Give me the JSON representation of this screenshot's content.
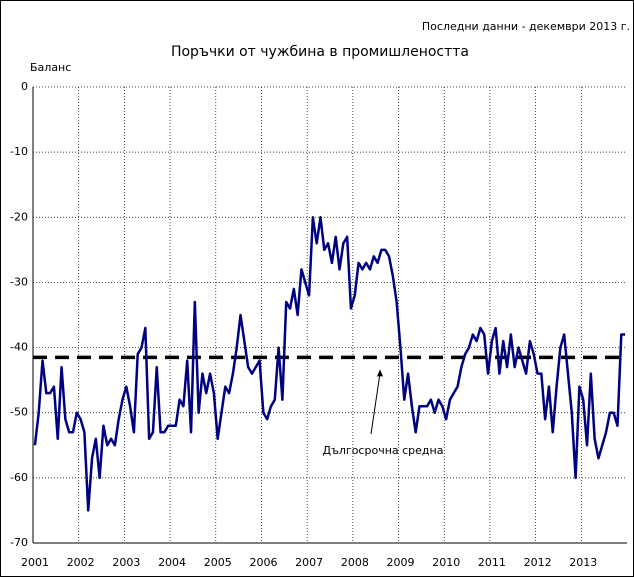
{
  "chart_data": {
    "type": "line",
    "title": "Поръчки от чужбина в промишлеността",
    "note": "Последни данни - декември 2013 г.",
    "ylabel": "Баланс",
    "categories": [
      "2001",
      null,
      null,
      null,
      null,
      null,
      null,
      null,
      null,
      null,
      null,
      null,
      "2002",
      null,
      null,
      null,
      null,
      null,
      null,
      null,
      null,
      null,
      null,
      null,
      "2003",
      null,
      null,
      null,
      null,
      null,
      null,
      null,
      null,
      null,
      null,
      null,
      "2004",
      null,
      null,
      null,
      null,
      null,
      null,
      null,
      null,
      null,
      null,
      null,
      "2005",
      null,
      null,
      null,
      null,
      null,
      null,
      null,
      null,
      null,
      null,
      null,
      "2006",
      null,
      null,
      null,
      null,
      null,
      null,
      null,
      null,
      null,
      null,
      null,
      "2007",
      null,
      null,
      null,
      null,
      null,
      null,
      null,
      null,
      null,
      null,
      null,
      "2008",
      null,
      null,
      null,
      null,
      null,
      null,
      null,
      null,
      null,
      null,
      null,
      "2009",
      null,
      null,
      null,
      null,
      null,
      null,
      null,
      null,
      null,
      null,
      null,
      "2010",
      null,
      null,
      null,
      null,
      null,
      null,
      null,
      null,
      null,
      null,
      null,
      "2011",
      null,
      null,
      null,
      null,
      null,
      null,
      null,
      null,
      null,
      null,
      null,
      "2012",
      null,
      null,
      null,
      null,
      null,
      null,
      null,
      null,
      null,
      null,
      null,
      "2013",
      null,
      null,
      null,
      null,
      null,
      null,
      null,
      null,
      null,
      null,
      null
    ],
    "series": [
      {
        "color": "#000080",
        "values": [
          -55,
          -50,
          -42,
          -47,
          -47,
          -46,
          -54,
          -43,
          -51,
          -53,
          -53,
          -50,
          -51,
          -53,
          -65,
          -57,
          -54,
          -60,
          -52,
          -55,
          -54,
          -55,
          -51,
          -48,
          -46,
          -49,
          -53,
          -41,
          -40,
          -37,
          -54,
          -53,
          -43,
          -53,
          -53,
          -52,
          -52,
          -52,
          -48,
          -49,
          -42,
          -53,
          -33,
          -50,
          -44,
          -47,
          -44,
          -47,
          -54,
          -50,
          -46,
          -47,
          -44,
          -40,
          -35,
          -39,
          -43,
          -44,
          -43,
          -42,
          -50,
          -51,
          -49,
          -48,
          -40,
          -48,
          -33,
          -34,
          -31,
          -35,
          -28,
          -30,
          -32,
          -20,
          -24,
          -20,
          -25,
          -24,
          -27,
          -23,
          -28,
          -24,
          -23,
          -34,
          -32,
          -27,
          -28,
          -27,
          -28,
          -26,
          -27,
          -25,
          -25,
          -26,
          -29,
          -33,
          -40,
          -48,
          -44,
          -49,
          -53,
          -49,
          -49,
          -49,
          -48,
          -50,
          -48,
          -49,
          -51,
          -48,
          -47,
          -46,
          -43,
          -41,
          -40,
          -38,
          -39,
          -37,
          -38,
          -44,
          -39,
          -37,
          -44,
          -39,
          -43,
          -38,
          -43,
          -40,
          -42,
          -44,
          -39,
          -41,
          -44,
          -44,
          -51,
          -46,
          -53,
          -46,
          -40,
          -38,
          -44,
          -50,
          -60,
          -46,
          -48,
          -55,
          -44,
          -54,
          -57,
          -55,
          -53,
          -50,
          -50,
          -52,
          -38,
          -38
        ]
      }
    ],
    "long_term_average": -41.5,
    "average_label": "Дългосрочна средна",
    "ylim": [
      -70,
      0
    ],
    "yticks": [
      0,
      -10,
      -20,
      -30,
      -40,
      -50,
      -60,
      -70
    ],
    "grid": true
  }
}
